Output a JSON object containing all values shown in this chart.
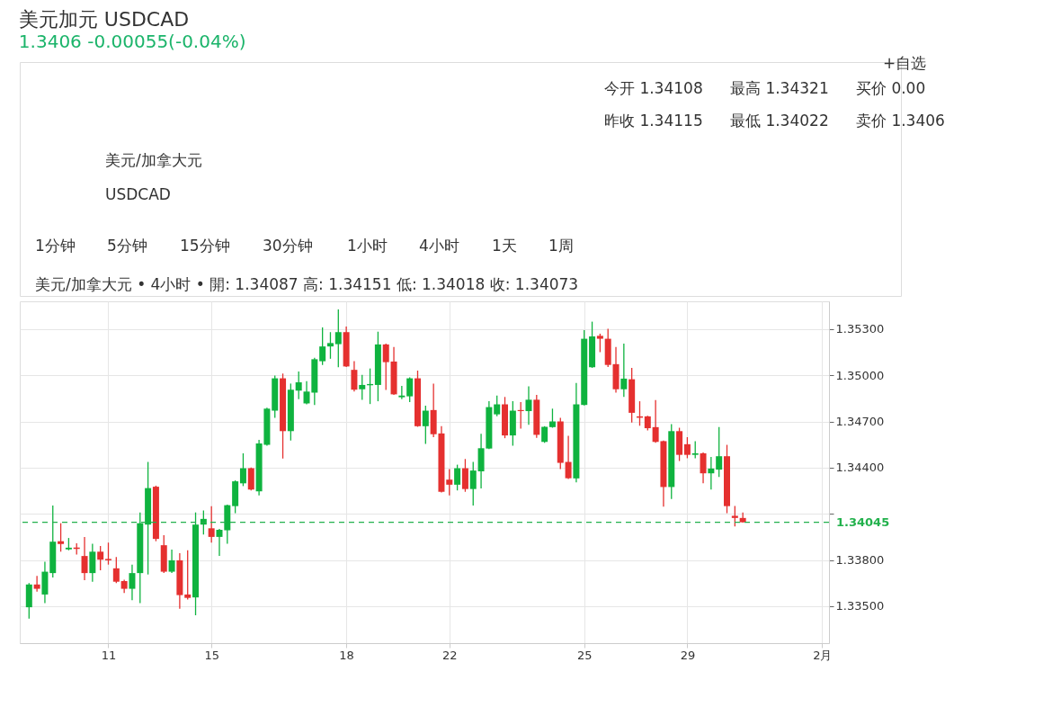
{
  "chart_data": {
    "type": "candlestick",
    "title": "美元加元 USDCAD",
    "subtitle": "1.3406 -0.00055(-0.04%)",
    "annotations": [
      "今开 1.34108",
      "最高 1.34321",
      "买价 0.00",
      "昨收 1.34115",
      "最低 1.34022",
      "卖价 1.3406",
      "+自选",
      "美元/加拿大元",
      "USDCAD",
      "1分钟",
      "5分钟",
      "15分钟",
      "30分钟",
      "1小时",
      "4小时",
      "1天",
      "1周",
      "美元/加拿大元 • 4小时 • 開: 1.34087 高: 1.34151 低: 1.34018 收: 1.34073"
    ],
    "categories": [
      null,
      null,
      null,
      null,
      null,
      null,
      null,
      null,
      null,
      null,
      "11",
      null,
      null,
      null,
      null,
      null,
      null,
      null,
      null,
      null,
      null,
      null,
      null,
      "15",
      null,
      null,
      null,
      null,
      null,
      null,
      null,
      null,
      null,
      null,
      null,
      null,
      null,
      null,
      null,
      null,
      "18",
      null,
      null,
      null,
      null,
      null,
      null,
      null,
      null,
      null,
      null,
      null,
      null,
      "22",
      null,
      null,
      null,
      null,
      null,
      null,
      null,
      null,
      null,
      null,
      null,
      null,
      null,
      null,
      null,
      null,
      "25",
      null,
      null,
      null,
      null,
      null,
      null,
      null,
      null,
      null,
      null,
      null,
      null,
      "29",
      null,
      null,
      null,
      null,
      null,
      null,
      null,
      null,
      null,
      null,
      null,
      null,
      null,
      null,
      null,
      null,
      "2月"
    ],
    "ohlc": [
      [
        1.33493,
        1.3365,
        1.33419,
        1.33641
      ],
      [
        1.33641,
        1.33696,
        1.33594,
        1.33613
      ],
      [
        1.33576,
        1.33789,
        1.3352,
        1.33724
      ],
      [
        1.33715,
        1.34154,
        1.33687,
        1.33919
      ],
      [
        1.33922,
        1.34039,
        1.33854,
        1.33904
      ],
      [
        1.33869,
        1.33943,
        1.33863,
        1.3388
      ],
      [
        1.33881,
        1.33909,
        1.33835,
        1.33872
      ],
      [
        1.33826,
        1.3395,
        1.33669,
        1.33715
      ],
      [
        1.33715,
        1.33906,
        1.33659,
        1.33854
      ],
      [
        1.33854,
        1.33891,
        1.33733,
        1.33802
      ],
      [
        1.33807,
        1.33913,
        1.3377,
        1.33798
      ],
      [
        1.33746,
        1.3382,
        1.3365,
        1.33659
      ],
      [
        1.33663,
        1.33672,
        1.33585,
        1.33613
      ],
      [
        1.33613,
        1.3377,
        1.33539,
        1.33715
      ],
      [
        1.33715,
        1.34109,
        1.3352,
        1.34039
      ],
      [
        1.3403,
        1.34437,
        1.33706,
        1.34267
      ],
      [
        1.34276,
        1.34283,
        1.33922,
        1.33937
      ],
      [
        1.33896,
        1.33961,
        1.33715,
        1.33724
      ],
      [
        1.33724,
        1.33867,
        1.33715,
        1.33798
      ],
      [
        1.33798,
        1.33844,
        1.33483,
        1.33572
      ],
      [
        1.33576,
        1.33863,
        1.33543,
        1.33554
      ],
      [
        1.33557,
        1.34109,
        1.33441,
        1.3403
      ],
      [
        1.3403,
        1.34122,
        1.33965,
        1.34067
      ],
      [
        1.34006,
        1.3415,
        1.33913,
        1.3395
      ],
      [
        1.3395,
        1.34002,
        1.33826,
        1.33996
      ],
      [
        1.33993,
        1.34159,
        1.33906,
        1.34156
      ],
      [
        1.3415,
        1.34317,
        1.34104,
        1.34311
      ],
      [
        1.34298,
        1.34493,
        1.3428,
        1.34396
      ],
      [
        1.34396,
        1.344,
        1.34252,
        1.34257
      ],
      [
        1.34246,
        1.3458,
        1.34219,
        1.34557
      ],
      [
        1.34548,
        1.34789,
        1.34543,
        1.34783
      ],
      [
        1.3477,
        1.34998,
        1.34724,
        1.3498
      ],
      [
        1.3498,
        1.35011,
        1.34459,
        1.34637
      ],
      [
        1.34637,
        1.34946,
        1.34576,
        1.34906
      ],
      [
        1.349,
        1.35024,
        1.34844,
        1.34954
      ],
      [
        1.34817,
        1.34961,
        1.34811,
        1.34894
      ],
      [
        1.34887,
        1.35113,
        1.34807,
        1.35104
      ],
      [
        1.35091,
        1.35311,
        1.35067,
        1.35187
      ],
      [
        1.35187,
        1.3528,
        1.35107,
        1.35209
      ],
      [
        1.35202,
        1.35428,
        1.35052,
        1.3528
      ],
      [
        1.3528,
        1.35317,
        1.35054,
        1.35057
      ],
      [
        1.35035,
        1.35091,
        1.34894,
        1.34906
      ],
      [
        1.34909,
        1.35002,
        1.34841,
        1.34937
      ],
      [
        1.34935,
        1.35044,
        1.34813,
        1.34943
      ],
      [
        1.34937,
        1.35283,
        1.34831,
        1.352
      ],
      [
        1.352,
        1.35206,
        1.34904,
        1.35085
      ],
      [
        1.35089,
        1.35183,
        1.34872,
        1.34876
      ],
      [
        1.34857,
        1.34931,
        1.34844,
        1.34868
      ],
      [
        1.34863,
        1.34987,
        1.34826,
        1.3498
      ],
      [
        1.3498,
        1.3503,
        1.34665,
        1.34669
      ],
      [
        1.34669,
        1.34802,
        1.34554,
        1.3477
      ],
      [
        1.34774,
        1.34946,
        1.34598,
        1.34617
      ],
      [
        1.34622,
        1.34669,
        1.34239,
        1.34243
      ],
      [
        1.34322,
        1.34391,
        1.3422,
        1.34289
      ],
      [
        1.34289,
        1.34419,
        1.34252,
        1.34396
      ],
      [
        1.34396,
        1.34456,
        1.34243,
        1.34261
      ],
      [
        1.34261,
        1.34437,
        1.34154,
        1.34381
      ],
      [
        1.34376,
        1.3462,
        1.34265,
        1.34526
      ],
      [
        1.34524,
        1.34831,
        1.3452,
        1.34793
      ],
      [
        1.34746,
        1.34868,
        1.34733,
        1.34811
      ],
      [
        1.34811,
        1.34859,
        1.34591,
        1.34609
      ],
      [
        1.34609,
        1.34831,
        1.34543,
        1.3477
      ],
      [
        1.34774,
        1.34826,
        1.34654,
        1.34767
      ],
      [
        1.34767,
        1.34928,
        1.34678,
        1.34841
      ],
      [
        1.34841,
        1.34872,
        1.34594,
        1.34613
      ],
      [
        1.34567,
        1.34669,
        1.34561,
        1.34665
      ],
      [
        1.34663,
        1.34783,
        1.34659,
        1.347
      ],
      [
        1.347,
        1.34724,
        1.34391,
        1.34431
      ],
      [
        1.34437,
        1.34607,
        1.34326,
        1.34331
      ],
      [
        1.3433,
        1.3495,
        1.34304,
        1.34811
      ],
      [
        1.34807,
        1.35293,
        1.34804,
        1.35237
      ],
      [
        1.35052,
        1.35348,
        1.35048,
        1.35252
      ],
      [
        1.35256,
        1.3527,
        1.3515,
        1.35237
      ],
      [
        1.35237,
        1.35302,
        1.35054,
        1.35067
      ],
      [
        1.35072,
        1.35183,
        1.34887,
        1.34909
      ],
      [
        1.34909,
        1.35206,
        1.34859,
        1.34978
      ],
      [
        1.34974,
        1.35048,
        1.34693,
        1.34756
      ],
      [
        1.34733,
        1.34831,
        1.34672,
        1.34724
      ],
      [
        1.34733,
        1.34737,
        1.34641,
        1.34656
      ],
      [
        1.34663,
        1.34839,
        1.34561,
        1.34567
      ],
      [
        1.34572,
        1.34576,
        1.34146,
        1.34274
      ],
      [
        1.34274,
        1.34683,
        1.34196,
        1.34637
      ],
      [
        1.34637,
        1.34659,
        1.34443,
        1.34483
      ],
      [
        1.34552,
        1.34598,
        1.34461,
        1.34483
      ],
      [
        1.34483,
        1.34572,
        1.34461,
        1.34493
      ],
      [
        1.34493,
        1.34498,
        1.34298,
        1.34363
      ],
      [
        1.34363,
        1.3447,
        1.34257,
        1.34394
      ],
      [
        1.34387,
        1.34663,
        1.34339,
        1.34474
      ],
      [
        1.34474,
        1.34548,
        1.34104,
        1.3415
      ],
      [
        1.34087,
        1.34151,
        1.34018,
        1.34073
      ],
      [
        1.34073,
        1.34109,
        1.34043,
        1.34045
      ],
      null,
      null,
      null,
      null,
      null,
      null,
      null,
      null,
      null,
      null
    ],
    "ylim": [
      1.3326,
      1.3548
    ],
    "yticks": [
      {
        "value": 1.335,
        "label": "1.33500"
      },
      {
        "value": 1.338,
        "label": "1.33800"
      },
      {
        "value": 1.341,
        "label": null
      },
      {
        "value": 1.344,
        "label": "1.34400"
      },
      {
        "value": 1.347,
        "label": "1.34700"
      },
      {
        "value": 1.35,
        "label": "1.35000"
      },
      {
        "value": 1.353,
        "label": "1.35300"
      }
    ],
    "grid": true,
    "ref_lines": [
      {
        "axis": "y",
        "value": 1.34045,
        "label": "1.34045",
        "color": "#22b14c",
        "line_style": "dashed"
      }
    ]
  }
}
